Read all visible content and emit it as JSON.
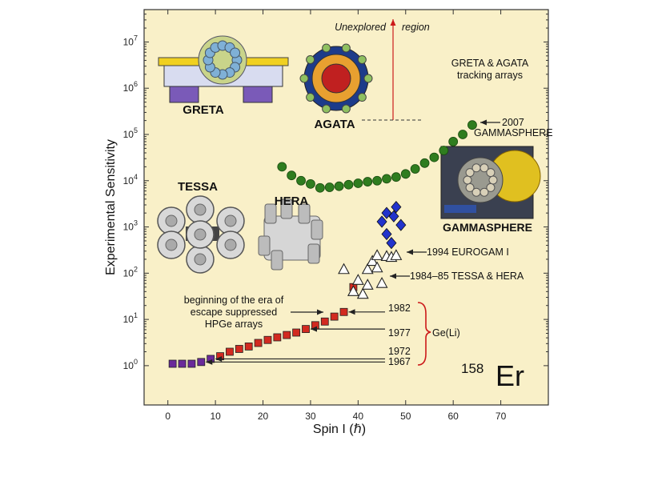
{
  "chart_data": {
    "type": "scatter",
    "title": "",
    "xlabel": "Spin I (ℏ)",
    "ylabel": "Experimental Sensitivity",
    "xlim": [
      -5,
      80
    ],
    "ylim_log10": [
      -0.85,
      7.7
    ],
    "y_scale": "log",
    "x_ticks": [
      "0",
      "10",
      "20",
      "30",
      "40",
      "50",
      "60",
      "70"
    ],
    "y_ticks_exponents": [
      "0",
      "1",
      "2",
      "3",
      "4",
      "5",
      "6",
      "7"
    ],
    "y_tick_base": "10",
    "grid": false,
    "background": "#f9f0c8",
    "series": [
      {
        "color": "#6a2a9a",
        "marker": "square",
        "x": [
          1,
          3,
          5,
          7,
          9
        ],
        "y": [
          1.1,
          1.1,
          1.1,
          1.2,
          1.4
        ]
      },
      {
        "color": "#d22a20",
        "marker": "square",
        "x": [
          11,
          13,
          15,
          17,
          19,
          21,
          23,
          25,
          27,
          29,
          31,
          33,
          35,
          37,
          39
        ],
        "y": [
          1.6,
          2.0,
          2.3,
          2.6,
          3.1,
          3.6,
          4.1,
          4.6,
          5.2,
          6.2,
          7.5,
          9.0,
          11.5,
          14.5,
          50
        ]
      },
      {
        "color": "#ffffff",
        "marker": "triangle",
        "x": [
          37,
          39,
          40,
          41,
          42,
          42,
          43,
          44,
          44,
          45,
          46,
          47,
          48
        ],
        "y": [
          120,
          40,
          70,
          35,
          120,
          55,
          180,
          130,
          240,
          60,
          230,
          220,
          240
        ]
      },
      {
        "color": "#2233cc",
        "marker": "diamond",
        "x": [
          45,
          46,
          46,
          47,
          47.5,
          48,
          49
        ],
        "y": [
          1300,
          2000,
          700,
          450,
          1700,
          2700,
          1100
        ]
      },
      {
        "color": "#2f7d1f",
        "marker": "circle",
        "x": [
          24,
          26,
          28,
          30,
          32,
          34,
          36,
          38,
          40,
          42,
          44,
          46,
          48,
          50,
          52,
          54,
          56,
          58,
          60,
          62,
          64
        ],
        "y": [
          20000,
          13000,
          10000,
          8500,
          7000,
          7200,
          7600,
          8200,
          8800,
          9500,
          10000,
          11000,
          12000,
          14000,
          18000,
          24000,
          32000,
          45000,
          70000,
          100000,
          160000
        ]
      }
    ],
    "year_annotations": [
      {
        "label": "1982",
        "target_x": 37,
        "target_y": 14.5
      },
      {
        "label": "1977",
        "target_x": 29,
        "target_y": 6.2
      },
      {
        "label": "1972",
        "target_x": 9,
        "target_y": 1.4
      },
      {
        "label": "1967",
        "target_x": 7,
        "target_y": 1.2
      }
    ],
    "annotations": {
      "geli": "Ge(Li)",
      "era_line1": "beginning of the era of",
      "era_line2": "escape suppressed",
      "era_line3": "HPGe arrays",
      "eurogam": "1994 EUROGAM I",
      "tessa_hera": "1984–85 TESSA & HERA",
      "gs_year": "2007",
      "gs_name": "GAMMASPHERE",
      "tracking_line1": "GRETA & AGATA",
      "tracking_line2": "tracking arrays",
      "unexplored_left": "Unexplored",
      "unexplored_right": "region",
      "isotope_mass": "158",
      "isotope_symbol": "Er"
    },
    "detector_labels": {
      "greta": "GRETA",
      "agata": "AGATA",
      "tessa": "TESSA",
      "hera": "HERA",
      "gammasphere": "GAMMASPHERE"
    }
  }
}
